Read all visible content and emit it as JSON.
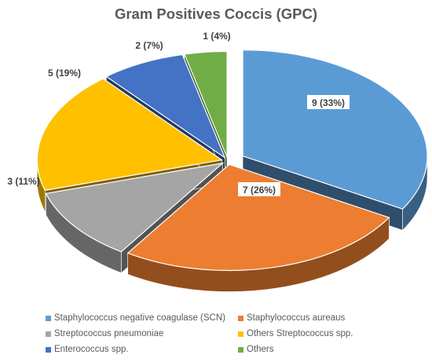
{
  "chart_data": {
    "type": "pie",
    "title": "Gram Positives Coccis (GPC)",
    "categories": [
      "Staphylococcus negative coagulase (SCN)",
      "Staphylococcus aureaus",
      "Streptococcus pneumoniae",
      "Others Streptococcus spp.",
      "Enterococcus spp.",
      "Others"
    ],
    "values": [
      9,
      7,
      3,
      5,
      2,
      1
    ],
    "labels": [
      "9 (33%)",
      "7 (26%)",
      "3 (11%)",
      "5 (19%)",
      "2 (7%)",
      "1 (4%)"
    ],
    "colors": [
      "#5B9BD5",
      "#ED7D31",
      "#A5A5A5",
      "#FFC000",
      "#4472C4",
      "#70AD47"
    ],
    "legend_position": "bottom",
    "style": "3d-exploded"
  }
}
